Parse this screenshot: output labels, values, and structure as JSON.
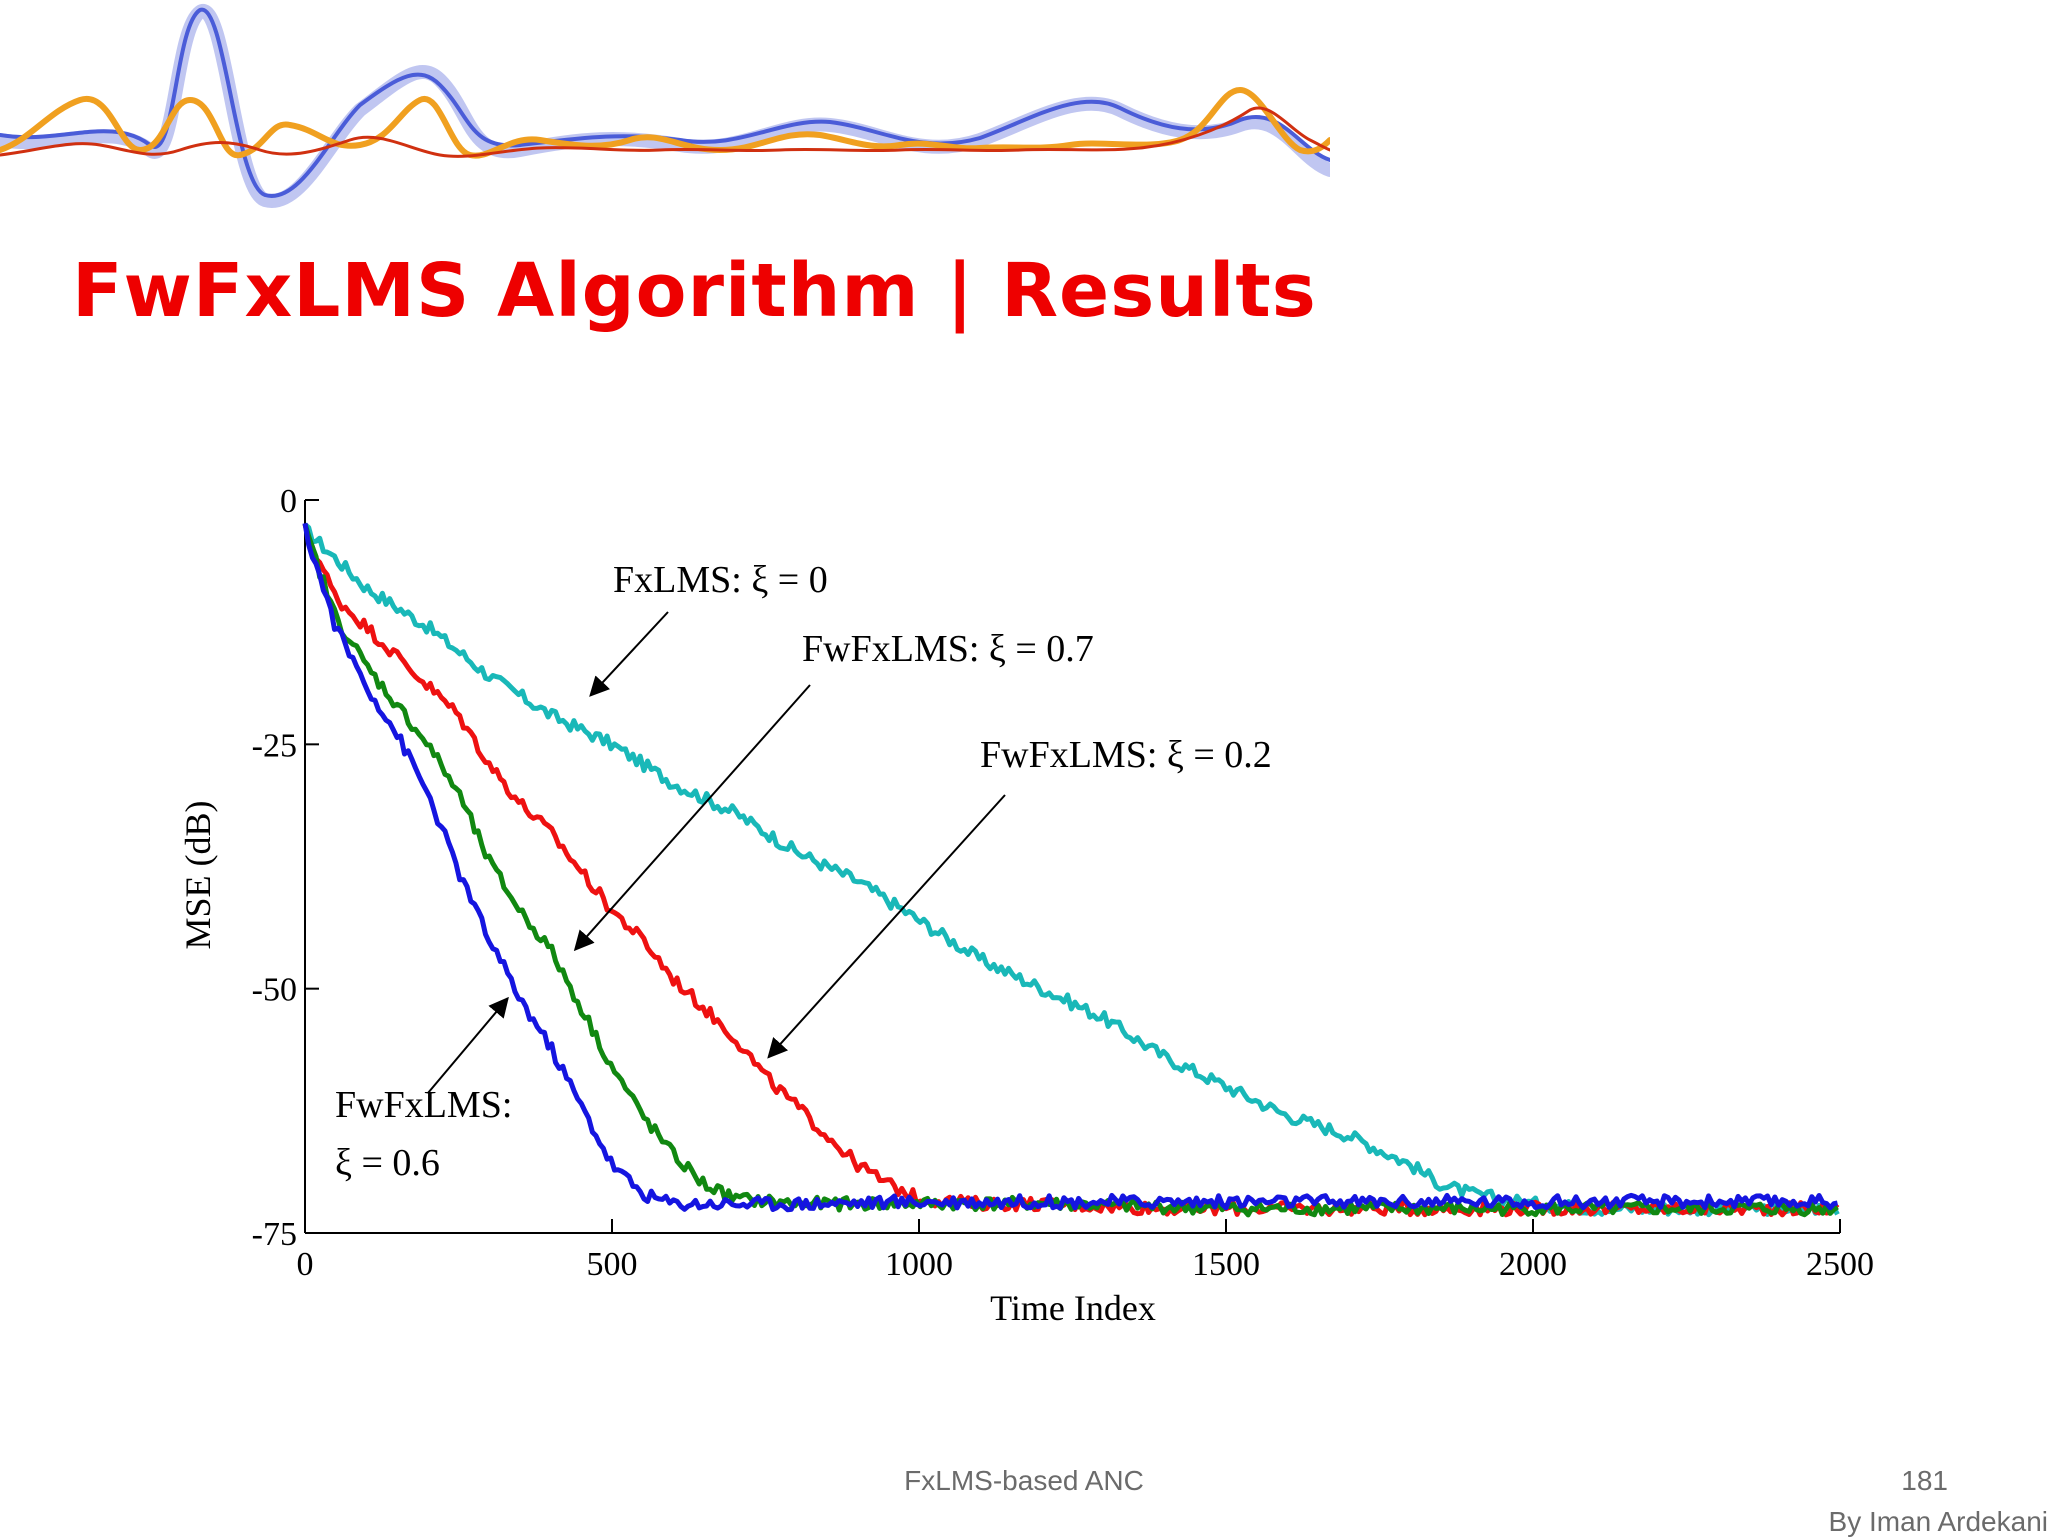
{
  "slide": {
    "title": "FwFxLMS Algorithm | Results",
    "footer_center": "FxLMS-based ANC",
    "page_number": "181",
    "author": "By Iman Ardekani"
  },
  "banner": {
    "colors": {
      "blue": "#4a5cd8",
      "orange": "#f0a020",
      "red": "#d03010"
    }
  },
  "chart_data": {
    "type": "line",
    "title": "",
    "xlabel": "Time Index",
    "ylabel": "MSE (dB)",
    "xlim": [
      0,
      2500
    ],
    "ylim": [
      -75,
      0
    ],
    "xticks": [
      0,
      500,
      1000,
      1500,
      2000,
      2500
    ],
    "yticks": [
      0,
      -25,
      -50,
      -75
    ],
    "ytick_labels": [
      "0",
      "-25",
      "-50",
      "-75"
    ],
    "grid": false,
    "series": [
      {
        "name": "FxLMS: ξ = 0",
        "color": "#19b8b8",
        "x": [
          0,
          100,
          200,
          300,
          400,
          500,
          600,
          700,
          800,
          900,
          1000,
          1100,
          1200,
          1300,
          1400,
          1500,
          1600,
          1700,
          1800,
          1850,
          1900,
          2000,
          2100,
          2200,
          2300,
          2400,
          2500
        ],
        "y": [
          -3,
          -9,
          -13,
          -18,
          -22,
          -25,
          -29,
          -32,
          -36,
          -39,
          -43,
          -47,
          -50,
          -53,
          -57,
          -60,
          -63,
          -65,
          -68,
          -70,
          -71,
          -72,
          -72.5,
          -72.5,
          -72.5,
          -72.5,
          -72.5
        ]
      },
      {
        "name": "FwFxLMS: ξ = 0.2",
        "color": "#ee1111",
        "x": [
          0,
          50,
          100,
          150,
          200,
          250,
          300,
          350,
          400,
          450,
          500,
          550,
          600,
          650,
          700,
          750,
          800,
          850,
          900,
          950,
          1000,
          1100,
          1200,
          1400,
          1600,
          1800,
          2000,
          2200,
          2500
        ],
        "y": [
          -3,
          -10,
          -13,
          -16,
          -19,
          -22,
          -27,
          -31,
          -34,
          -38,
          -42,
          -45,
          -49,
          -52,
          -55,
          -59,
          -62,
          -65,
          -68,
          -70,
          -71.5,
          -72,
          -72,
          -72.5,
          -72.5,
          -72.5,
          -72.5,
          -72.5,
          -72.5
        ]
      },
      {
        "name": "FwFxLMS: ξ = 0.7",
        "color": "#118811",
        "x": [
          0,
          50,
          100,
          150,
          200,
          250,
          300,
          350,
          400,
          450,
          500,
          550,
          600,
          650,
          700,
          800,
          900,
          1000,
          1200,
          1500,
          2000,
          2500
        ],
        "y": [
          -3,
          -12,
          -17,
          -21,
          -25,
          -30,
          -37,
          -42,
          -46,
          -52,
          -58,
          -63,
          -67,
          -70,
          -71.5,
          -72,
          -72,
          -72,
          -72,
          -72.5,
          -72.5,
          -72.5
        ]
      },
      {
        "name": "FwFxLMS: ξ = 0.6",
        "color": "#1515e0",
        "x": [
          0,
          50,
          100,
          150,
          200,
          250,
          300,
          350,
          400,
          450,
          500,
          550,
          600,
          700,
          800,
          1000,
          1500,
          2000,
          2500
        ],
        "y": [
          -3,
          -13,
          -19,
          -24,
          -30,
          -38,
          -45,
          -51,
          -56,
          -62,
          -68,
          -71,
          -72,
          -72,
          -72,
          -71.8,
          -71.8,
          -71.8,
          -71.8
        ]
      }
    ],
    "annotations": [
      {
        "label": "FxLMS:",
        "value": "ξ = 0",
        "arrow_to": [
          465,
          -20
        ]
      },
      {
        "label": "FwFxLMS:",
        "value": "ξ = 0.7",
        "arrow_to": [
          440,
          -46
        ]
      },
      {
        "label": "FwFxLMS:",
        "value": "ξ = 0.2",
        "arrow_to": [
          755,
          -57
        ]
      },
      {
        "label": "FwFxLMS:",
        "value": "ξ = 0.6",
        "arrow_to": [
          330,
          -51
        ]
      }
    ]
  }
}
